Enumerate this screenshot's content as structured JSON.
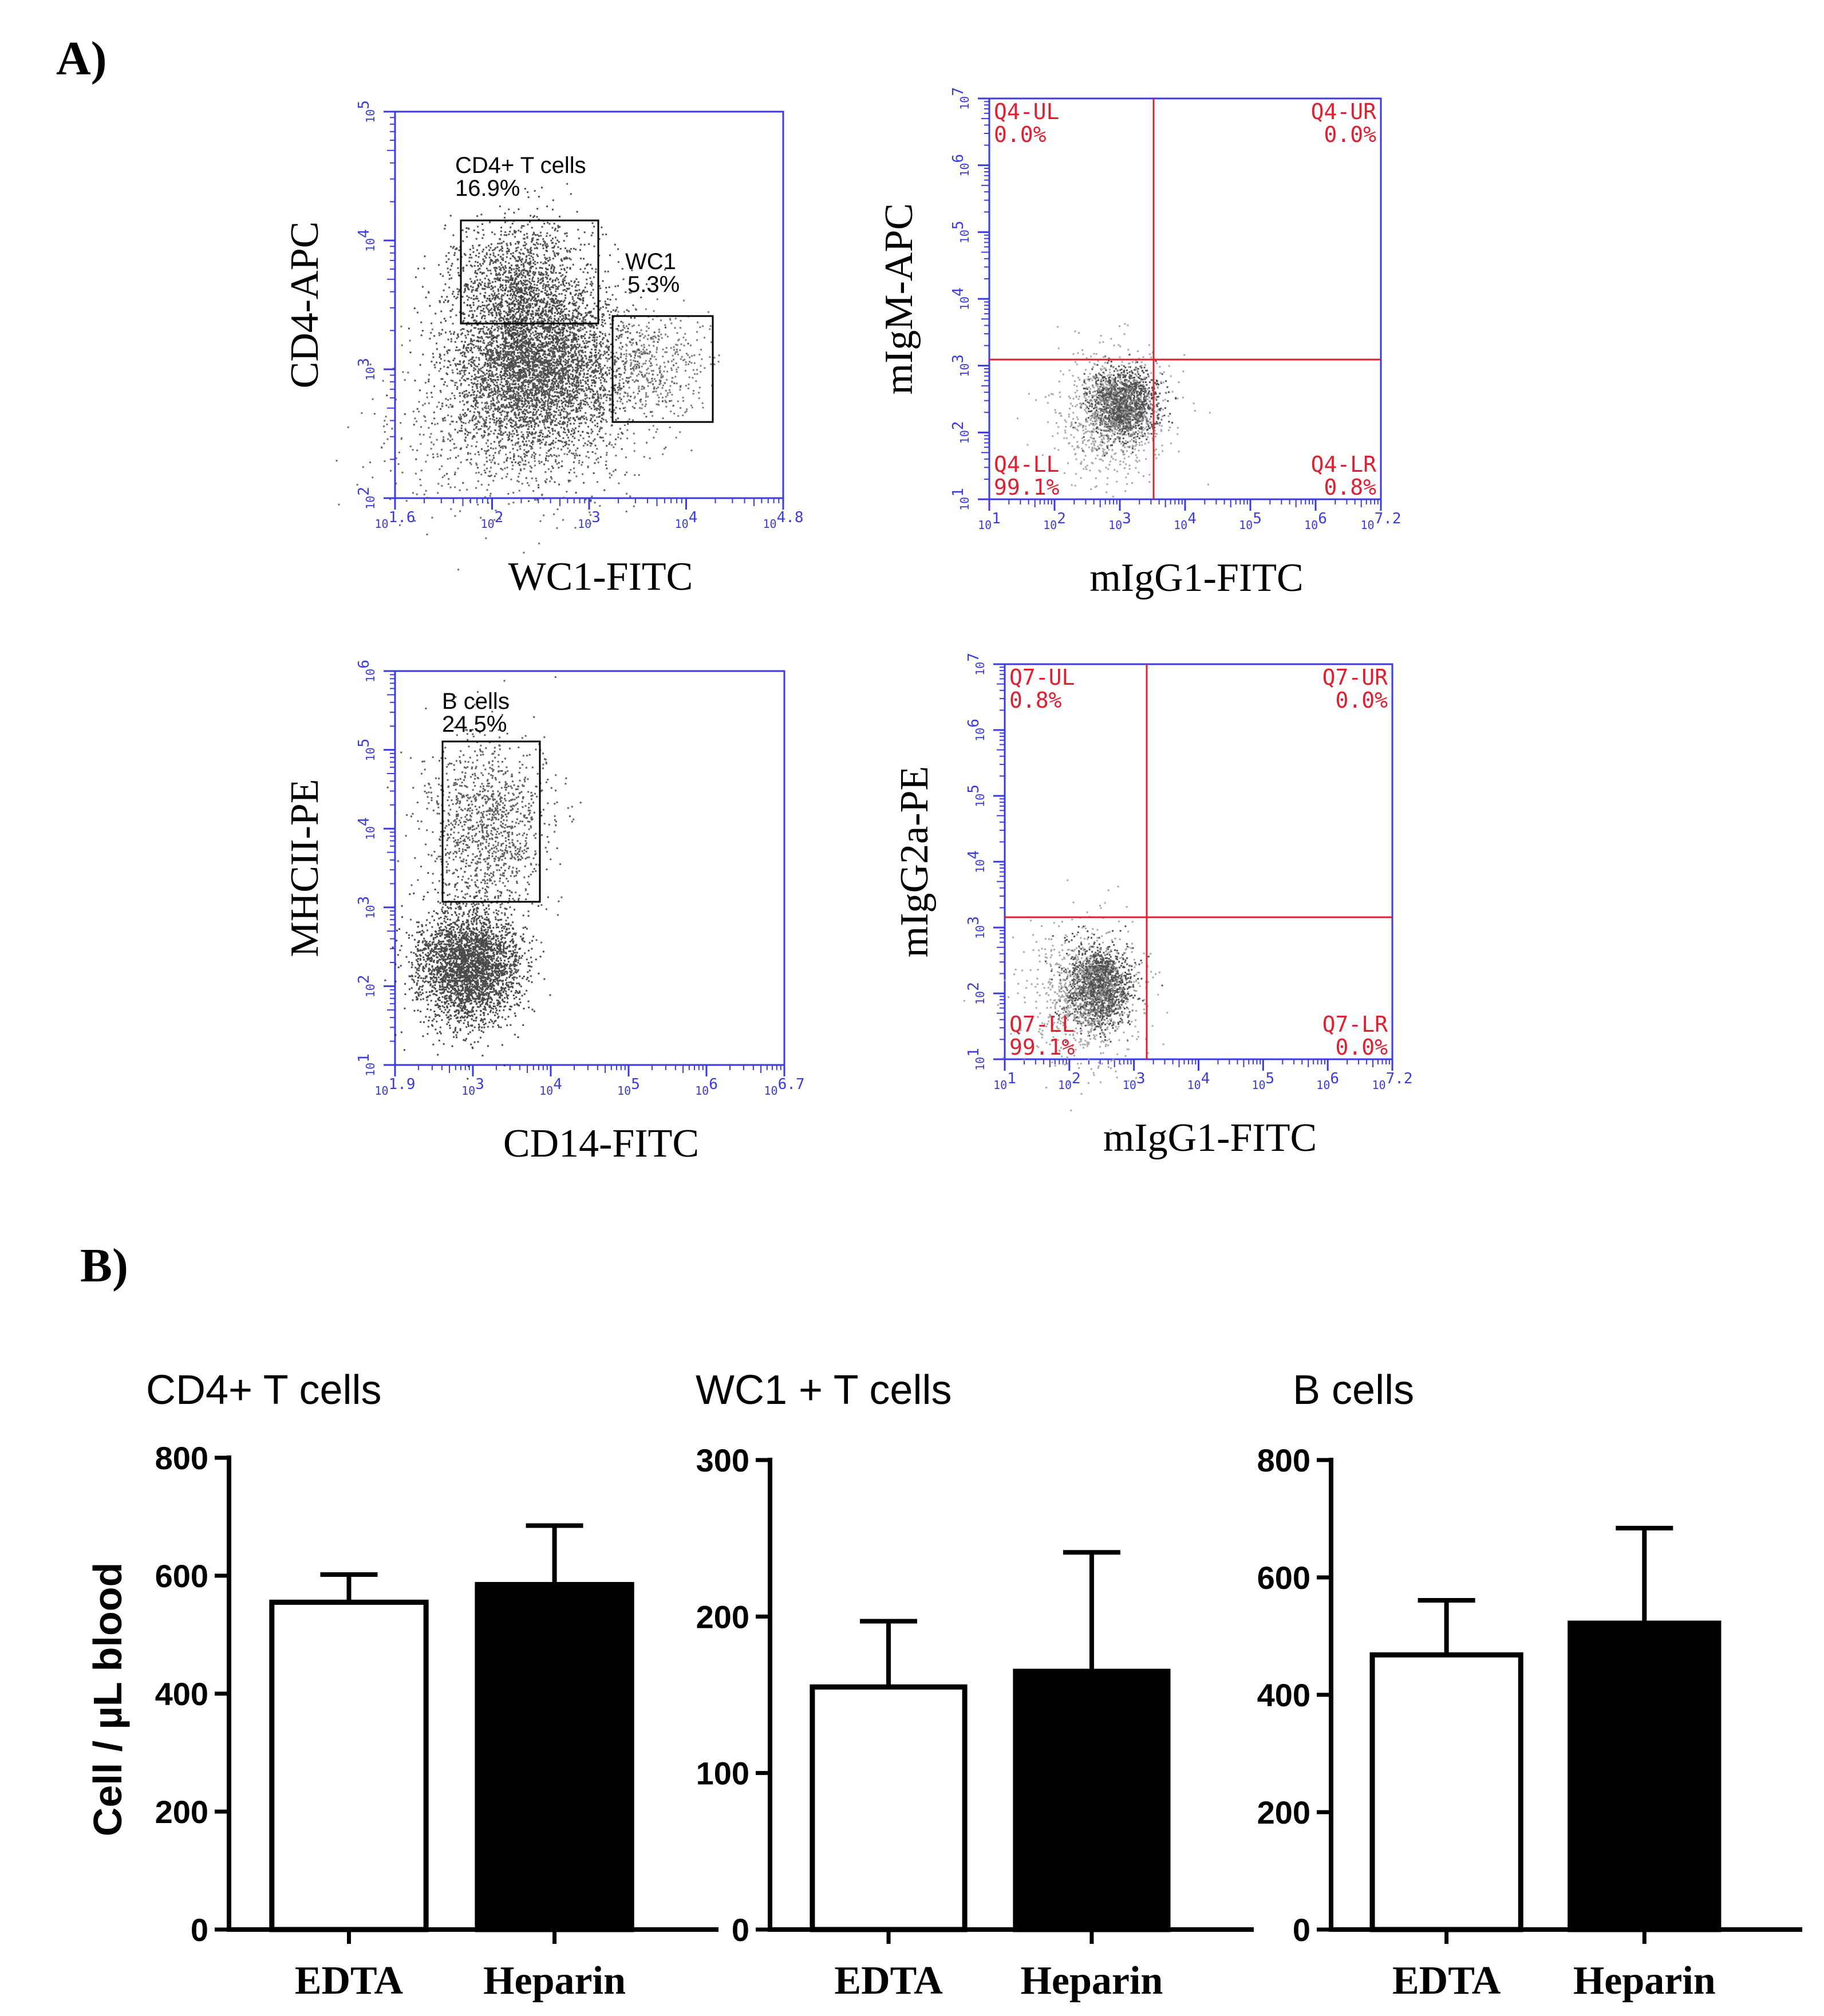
{
  "panel_labels": {
    "a": "A)",
    "b": "B)"
  },
  "colors": {
    "flow_axis": "#3a3ae0",
    "quadrant": "#e02030",
    "ink": "#000000",
    "dot": "#333333"
  },
  "flow_plots": [
    {
      "id": "p1",
      "xlabel": "WC1-FITC",
      "ylabel": "CD4-APC",
      "x_ticks": [
        "10^1.6",
        "10^2",
        "10^3",
        "10^4",
        "10^4.8"
      ],
      "y_ticks": [
        "10^2",
        "10^3",
        "10^4",
        "10^5"
      ],
      "gates": [
        {
          "name": "CD4+ T cells",
          "pct": "16.9%"
        },
        {
          "name": "WC1",
          "pct": "5.3%"
        }
      ]
    },
    {
      "id": "p2",
      "xlabel": "mIgG1-FITC",
      "ylabel": "mIgM-APC",
      "x_ticks": [
        "10^1",
        "10^2",
        "10^3",
        "10^4",
        "10^5",
        "10^6",
        "10^7.2"
      ],
      "y_ticks": [
        "10^1",
        "10^2",
        "10^3",
        "10^4",
        "10^5",
        "10^6",
        "10^7"
      ],
      "quadrants": [
        {
          "name": "Q4-UL",
          "pct": "0.0%"
        },
        {
          "name": "Q4-UR",
          "pct": "0.0%"
        },
        {
          "name": "Q4-LL",
          "pct": "99.1%"
        },
        {
          "name": "Q4-LR",
          "pct": "0.8%"
        }
      ]
    },
    {
      "id": "p3",
      "xlabel": "CD14-FITC",
      "ylabel": "MHCII-PE",
      "x_ticks": [
        "10^1.9",
        "10^3",
        "10^4",
        "10^5",
        "10^6",
        "10^6.7"
      ],
      "y_ticks": [
        "10^1",
        "10^2",
        "10^3",
        "10^4",
        "10^5",
        "10^6"
      ],
      "gates": [
        {
          "name": "B cells",
          "pct": "24.5%"
        }
      ]
    },
    {
      "id": "p4",
      "xlabel": "mIgG1-FITC",
      "ylabel": "mIgG2a-PE",
      "x_ticks": [
        "10^1",
        "10^2",
        "10^3",
        "10^4",
        "10^5",
        "10^6",
        "10^7.2"
      ],
      "y_ticks": [
        "10^1",
        "10^2",
        "10^3",
        "10^4",
        "10^5",
        "10^6",
        "10^7"
      ],
      "quadrants": [
        {
          "name": "Q7-UL",
          "pct": "0.8%"
        },
        {
          "name": "Q7-UR",
          "pct": "0.0%"
        },
        {
          "name": "Q7-LL",
          "pct": "99.1%"
        },
        {
          "name": "Q7-LR",
          "pct": "0.0%"
        }
      ]
    }
  ],
  "chart_data": [
    {
      "type": "bar",
      "title": "CD4+ T cells",
      "categories": [
        "EDTA",
        "Heparin"
      ],
      "values": [
        555,
        585
      ],
      "errors": [
        47,
        100
      ],
      "fills": [
        "#ffffff",
        "#000000"
      ],
      "ylabel": "Cell / µL blood",
      "ylim": [
        0,
        800
      ],
      "yticks": [
        0,
        200,
        400,
        600,
        800
      ]
    },
    {
      "type": "bar",
      "title": "WC1 + T cells",
      "categories": [
        "EDTA",
        "Heparin"
      ],
      "values": [
        155,
        165
      ],
      "errors": [
        42,
        76
      ],
      "fills": [
        "#ffffff",
        "#000000"
      ],
      "ylabel": "",
      "ylim": [
        0,
        300
      ],
      "yticks": [
        0,
        100,
        200,
        300
      ]
    },
    {
      "type": "bar",
      "title": "B cells",
      "categories": [
        "EDTA",
        "Heparin"
      ],
      "values": [
        468,
        522
      ],
      "errors": [
        93,
        162
      ],
      "fills": [
        "#ffffff",
        "#000000"
      ],
      "ylabel": "",
      "ylim": [
        0,
        800
      ],
      "yticks": [
        0,
        200,
        400,
        600,
        800
      ]
    }
  ]
}
